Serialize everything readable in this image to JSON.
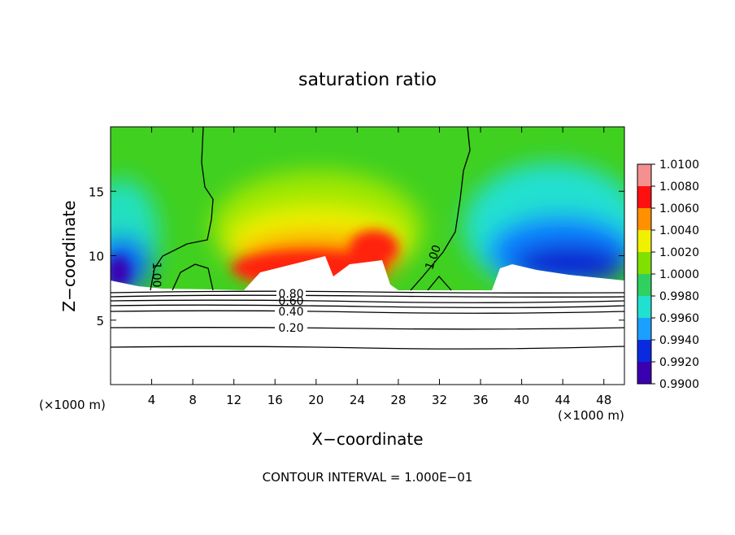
{
  "chart_data": {
    "type": "contour",
    "title": "saturation ratio",
    "x_label": "X−coordinate",
    "y_label": "Z−coordinate",
    "x_unit_labels": [
      "(×1000 m)",
      "(×1000 m)"
    ],
    "footer": "CONTOUR INTERVAL = 1.000E−01",
    "xlim": [
      0,
      50
    ],
    "xticks": [
      4,
      8,
      12,
      16,
      20,
      24,
      28,
      32,
      36,
      40,
      44,
      48
    ],
    "ylim": [
      0,
      20
    ],
    "yticks": [
      5,
      10,
      15
    ],
    "contour_labels": [
      "1.00",
      "1.00",
      "0.80",
      "0.60",
      "0.40",
      "0.20"
    ],
    "colorbar": {
      "lim": [
        0.99,
        1.01
      ],
      "ticks": [
        {
          "value": 0.99,
          "label": "0.9900"
        },
        {
          "value": 0.992,
          "label": "0.9920"
        },
        {
          "value": 0.994,
          "label": "0.9940"
        },
        {
          "value": 0.996,
          "label": "0.9960"
        },
        {
          "value": 0.998,
          "label": "0.9980"
        },
        {
          "value": 1.0,
          "label": "1.0000"
        },
        {
          "value": 1.002,
          "label": "1.0020"
        },
        {
          "value": 1.004,
          "label": "1.0040"
        },
        {
          "value": 1.006,
          "label": "1.0060"
        },
        {
          "value": 1.008,
          "label": "1.0080"
        },
        {
          "value": 1.01,
          "label": "1.0100"
        }
      ],
      "colors": [
        "#3a00b0",
        "#0a2ae0",
        "#1ca0ff",
        "#20e0d0",
        "#30d060",
        "#80e000",
        "#f0f000",
        "#ff9000",
        "#ff1010",
        "#f59090"
      ]
    }
  }
}
